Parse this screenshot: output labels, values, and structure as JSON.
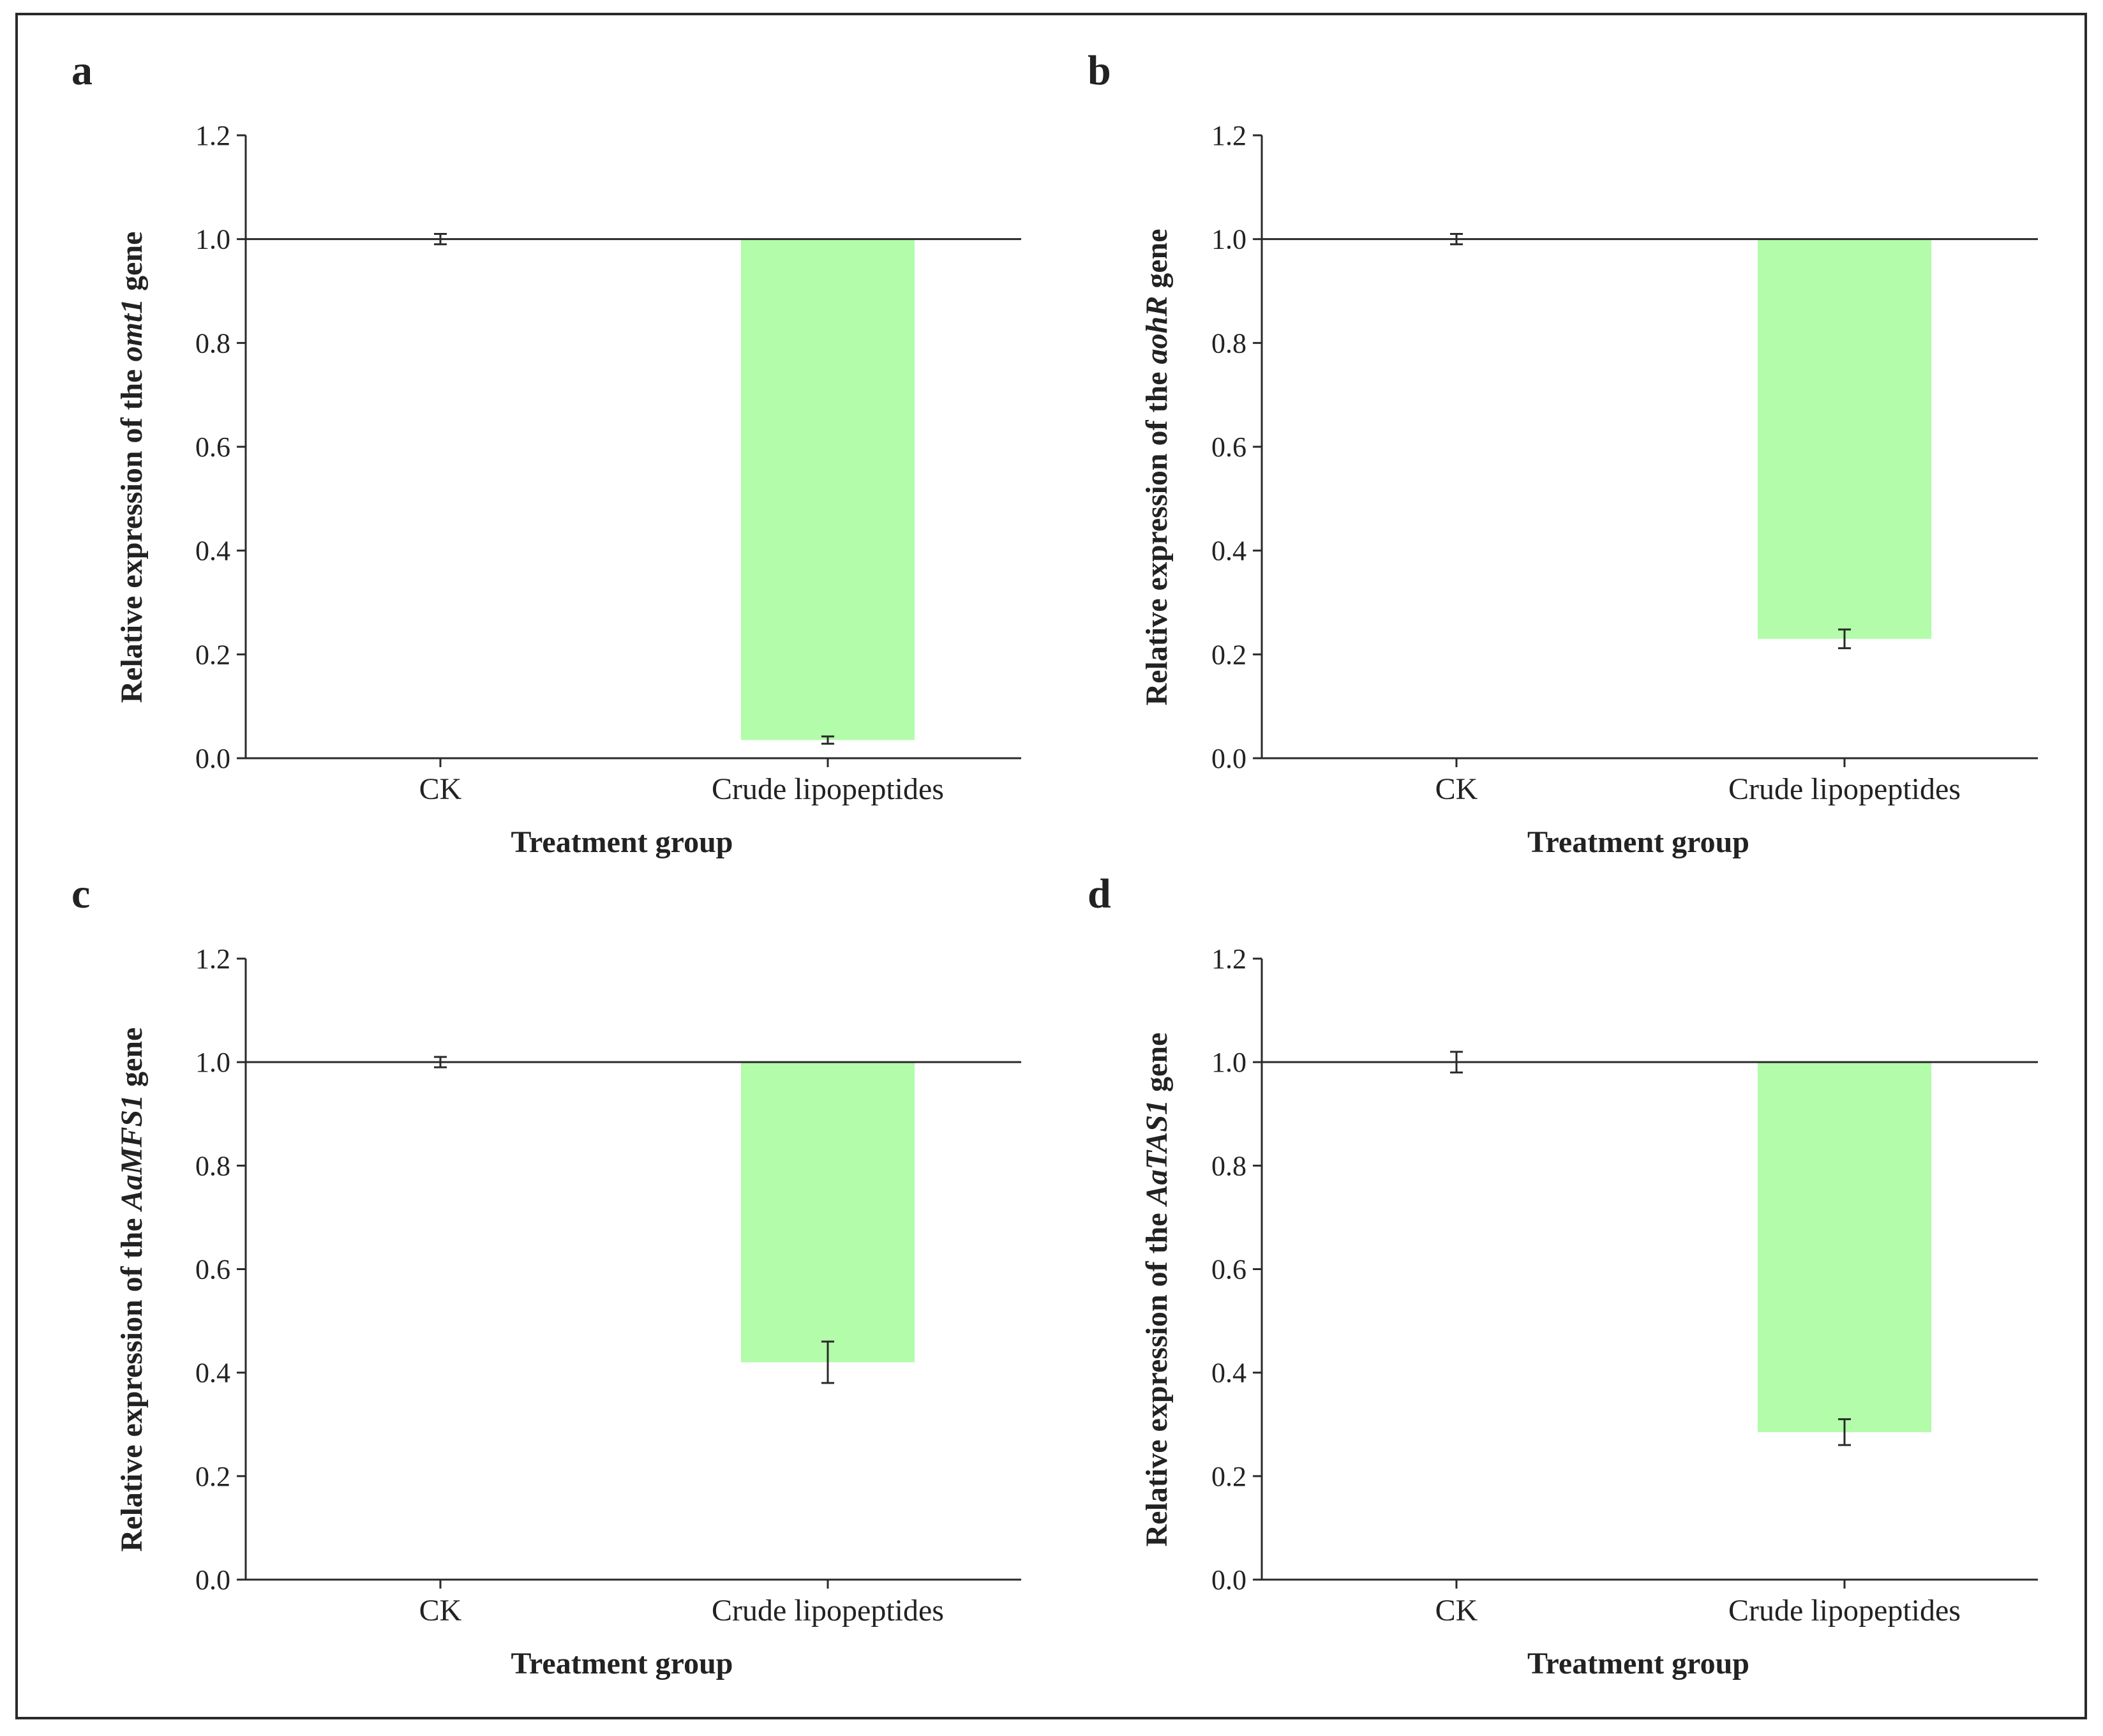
{
  "chart_data": [
    {
      "panel": "a",
      "type": "bar",
      "categories": [
        "CK",
        "Crude lipopeptides"
      ],
      "values": [
        1.0,
        0.035
      ],
      "errors": [
        0.01,
        0.007
      ],
      "baseline": 1.0,
      "xlabel": "Treatment group",
      "ylabel_prefix": "Relative expression of the ",
      "ylabel_gene": "omt1",
      "ylabel_suffix": " gene",
      "ylim": [
        0,
        1.2
      ],
      "yticks": [
        "0.0",
        "0.2",
        "0.4",
        "0.6",
        "0.8",
        "1.0",
        "1.2"
      ],
      "bar_color": "#b2fcaa"
    },
    {
      "panel": "b",
      "type": "bar",
      "categories": [
        "CK",
        "Crude lipopeptides"
      ],
      "values": [
        1.0,
        0.23
      ],
      "errors": [
        0.01,
        0.018
      ],
      "baseline": 1.0,
      "xlabel": "Treatment group",
      "ylabel_prefix": "Relative expression of the ",
      "ylabel_gene": "aohR",
      "ylabel_suffix": " gene",
      "ylim": [
        0,
        1.2
      ],
      "yticks": [
        "0.0",
        "0.2",
        "0.4",
        "0.6",
        "0.8",
        "1.0",
        "1.2"
      ],
      "bar_color": "#b2fcaa"
    },
    {
      "panel": "c",
      "type": "bar",
      "categories": [
        "CK",
        "Crude lipopeptides"
      ],
      "values": [
        1.0,
        0.42
      ],
      "errors": [
        0.01,
        0.04
      ],
      "baseline": 1.0,
      "xlabel": "Treatment group",
      "ylabel_prefix": "Relative expression of the ",
      "ylabel_gene": "AaMFS1",
      "ylabel_suffix": " gene",
      "ylim": [
        0,
        1.2
      ],
      "yticks": [
        "0.0",
        "0.2",
        "0.4",
        "0.6",
        "0.8",
        "1.0",
        "1.2"
      ],
      "bar_color": "#b2fcaa"
    },
    {
      "panel": "d",
      "type": "bar",
      "categories": [
        "CK",
        "Crude lipopeptides"
      ],
      "values": [
        1.0,
        0.285
      ],
      "errors": [
        0.02,
        0.025
      ],
      "baseline": 1.0,
      "xlabel": "Treatment group",
      "ylabel_prefix": "Relative expression of the ",
      "ylabel_gene": "AaTAS1",
      "ylabel_suffix": " gene",
      "ylim": [
        0,
        1.2
      ],
      "yticks": [
        "0.0",
        "0.2",
        "0.4",
        "0.6",
        "0.8",
        "1.0",
        "1.2"
      ],
      "bar_color": "#b2fcaa"
    }
  ]
}
